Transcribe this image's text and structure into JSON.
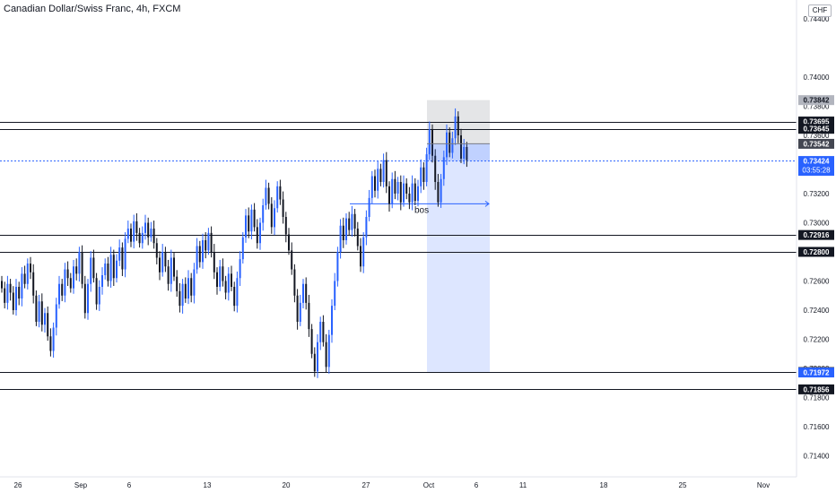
{
  "header": {
    "title": "Canadian Dollar/Swiss Franc, 4h, FXCM",
    "currency": "CHF"
  },
  "chart_data": {
    "type": "candlestick",
    "title": "Canadian Dollar/Swiss Franc, 4h, FXCM",
    "ylim": [
      0.7126,
      0.7455
    ],
    "y_ticks": [
      "0.74400",
      "0.74000",
      "0.73800",
      "0.73600",
      "0.73400",
      "0.73200",
      "0.73000",
      "0.72800",
      "0.72600",
      "0.72400",
      "0.72200",
      "0.72000",
      "0.71800",
      "0.71600",
      "0.71400"
    ],
    "x_ticks": [
      "26",
      "Sep",
      "6",
      "13",
      "20",
      "27",
      "Oct",
      "6",
      "11",
      "18",
      "25",
      "Nov"
    ],
    "horizontal_levels": [
      "0.73695",
      "0.73645",
      "0.72916",
      "0.72800",
      "0.71975",
      "0.71856"
    ],
    "price_labels": [
      {
        "value": "0.73842",
        "style": "gray"
      },
      {
        "value": "0.73695",
        "style": "black"
      },
      {
        "value": "0.73645",
        "style": "black"
      },
      {
        "value": "0.73542",
        "style": "dark"
      },
      {
        "value": "0.73424",
        "style": "blue"
      },
      {
        "value": "0.72916",
        "style": "black"
      },
      {
        "value": "0.72800",
        "style": "black"
      },
      {
        "value": "0.71975",
        "style": "black"
      },
      {
        "value": "0.71972",
        "style": "blue"
      },
      {
        "value": "0.71856",
        "style": "black"
      }
    ],
    "countdown": "03:55:28",
    "current_price": "0.73424",
    "annotation": "bos",
    "bos_level": 0.7313,
    "position": {
      "entry": 0.73542,
      "stop": 0.73842,
      "target": 0.71972,
      "current": 0.73424
    },
    "candles": [
      [
        0.726,
        0.7255
      ],
      [
        0.7255,
        0.7245
      ],
      [
        0.7245,
        0.7258
      ],
      [
        0.7258,
        0.7252
      ],
      [
        0.7252,
        0.724
      ],
      [
        0.724,
        0.7256
      ],
      [
        0.7256,
        0.7248
      ],
      [
        0.7248,
        0.7265
      ],
      [
        0.7265,
        0.7258
      ],
      [
        0.7258,
        0.7272
      ],
      [
        0.7272,
        0.7266
      ],
      [
        0.7266,
        0.725
      ],
      [
        0.725,
        0.7232
      ],
      [
        0.7232,
        0.7246
      ],
      [
        0.7246,
        0.723
      ],
      [
        0.723,
        0.7238
      ],
      [
        0.7238,
        0.7222
      ],
      [
        0.7222,
        0.7212
      ],
      [
        0.7212,
        0.7228
      ],
      [
        0.7228,
        0.7244
      ],
      [
        0.7244,
        0.7258
      ],
      [
        0.7258,
        0.725
      ],
      [
        0.725,
        0.7268
      ],
      [
        0.7268,
        0.7262
      ],
      [
        0.7262,
        0.7255
      ],
      [
        0.7255,
        0.727
      ],
      [
        0.727,
        0.7265
      ],
      [
        0.7265,
        0.728
      ],
      [
        0.728,
        0.7258
      ],
      [
        0.7258,
        0.7238
      ],
      [
        0.7238,
        0.7258
      ],
      [
        0.7258,
        0.7276
      ],
      [
        0.7276,
        0.7262
      ],
      [
        0.7262,
        0.7244
      ],
      [
        0.7244,
        0.7256
      ],
      [
        0.7256,
        0.7264
      ],
      [
        0.7264,
        0.7272
      ],
      [
        0.7272,
        0.726
      ],
      [
        0.726,
        0.7278
      ],
      [
        0.7278,
        0.7262
      ],
      [
        0.7262,
        0.7274
      ],
      [
        0.7274,
        0.7283
      ],
      [
        0.7283,
        0.7268
      ],
      [
        0.7268,
        0.7289
      ],
      [
        0.7289,
        0.7296
      ],
      [
        0.7296,
        0.7287
      ],
      [
        0.7287,
        0.7301
      ],
      [
        0.7301,
        0.7293
      ],
      [
        0.7293,
        0.7286
      ],
      [
        0.7286,
        0.7293
      ],
      [
        0.7293,
        0.73
      ],
      [
        0.73,
        0.729
      ],
      [
        0.729,
        0.7296
      ],
      [
        0.7296,
        0.7286
      ],
      [
        0.7286,
        0.7276
      ],
      [
        0.7276,
        0.7266
      ],
      [
        0.7266,
        0.728
      ],
      [
        0.728,
        0.727
      ],
      [
        0.727,
        0.7258
      ],
      [
        0.7258,
        0.7276
      ],
      [
        0.7276,
        0.7263
      ],
      [
        0.7263,
        0.7253
      ],
      [
        0.7253,
        0.7243
      ],
      [
        0.7243,
        0.7258
      ],
      [
        0.7258,
        0.7248
      ],
      [
        0.7248,
        0.7262
      ],
      [
        0.7262,
        0.725
      ],
      [
        0.725,
        0.7268
      ],
      [
        0.7268,
        0.7284
      ],
      [
        0.7284,
        0.7273
      ],
      [
        0.7273,
        0.7288
      ],
      [
        0.7288,
        0.7281
      ],
      [
        0.7281,
        0.7293
      ],
      [
        0.7293,
        0.728
      ],
      [
        0.728,
        0.7266
      ],
      [
        0.7266,
        0.7256
      ],
      [
        0.7256,
        0.727
      ],
      [
        0.727,
        0.726
      ],
      [
        0.726,
        0.7252
      ],
      [
        0.7252,
        0.7265
      ],
      [
        0.7265,
        0.7256
      ],
      [
        0.7256,
        0.7243
      ],
      [
        0.7243,
        0.7262
      ],
      [
        0.7262,
        0.7275
      ],
      [
        0.7275,
        0.729
      ],
      [
        0.729,
        0.7305
      ],
      [
        0.7305,
        0.7294
      ],
      [
        0.7294,
        0.7309
      ],
      [
        0.7309,
        0.7297
      ],
      [
        0.7297,
        0.7286
      ],
      [
        0.7286,
        0.73
      ],
      [
        0.73,
        0.7312
      ],
      [
        0.7312,
        0.7324
      ],
      [
        0.7324,
        0.7313
      ],
      [
        0.7313,
        0.7297
      ],
      [
        0.7297,
        0.731
      ],
      [
        0.731,
        0.7325
      ],
      [
        0.7325,
        0.7316
      ],
      [
        0.7316,
        0.7304
      ],
      [
        0.7304,
        0.7292
      ],
      [
        0.7292,
        0.7281
      ],
      [
        0.7281,
        0.7268
      ],
      [
        0.7268,
        0.725
      ],
      [
        0.725,
        0.7232
      ],
      [
        0.7232,
        0.7245
      ],
      [
        0.7245,
        0.7258
      ],
      [
        0.7258,
        0.7245
      ],
      [
        0.7245,
        0.7227
      ],
      [
        0.7227,
        0.721
      ],
      [
        0.721,
        0.7198
      ],
      [
        0.7198,
        0.7218
      ],
      [
        0.7218,
        0.7232
      ],
      [
        0.7232,
        0.7218
      ],
      [
        0.7218,
        0.7201
      ],
      [
        0.7201,
        0.7223
      ],
      [
        0.7223,
        0.7243
      ],
      [
        0.7243,
        0.726
      ],
      [
        0.726,
        0.728
      ],
      [
        0.728,
        0.7298
      ],
      [
        0.7298,
        0.7288
      ],
      [
        0.7288,
        0.7303
      ],
      [
        0.7303,
        0.7295
      ],
      [
        0.7295,
        0.7306
      ],
      [
        0.7306,
        0.7296
      ],
      [
        0.7296,
        0.7284
      ],
      [
        0.7284,
        0.727
      ],
      [
        0.727,
        0.729
      ],
      [
        0.729,
        0.7304
      ],
      [
        0.7304,
        0.7317
      ],
      [
        0.7317,
        0.7332
      ],
      [
        0.7332,
        0.7322
      ],
      [
        0.7322,
        0.7337
      ],
      [
        0.7337,
        0.7328
      ],
      [
        0.7328,
        0.7343
      ],
      [
        0.7343,
        0.7325
      ],
      [
        0.7325,
        0.7313
      ],
      [
        0.7313,
        0.733
      ],
      [
        0.733,
        0.732
      ],
      [
        0.732,
        0.7328
      ],
      [
        0.7328,
        0.7314
      ],
      [
        0.7314,
        0.7327
      ],
      [
        0.7327,
        0.732
      ],
      [
        0.732,
        0.7314
      ],
      [
        0.7314,
        0.7327
      ],
      [
        0.7327,
        0.7315
      ],
      [
        0.7315,
        0.7325
      ],
      [
        0.7325,
        0.7338
      ],
      [
        0.7338,
        0.7328
      ],
      [
        0.7328,
        0.7347
      ],
      [
        0.7347,
        0.7364
      ],
      [
        0.7364,
        0.7346
      ],
      [
        0.7346,
        0.7328
      ],
      [
        0.7328,
        0.7314
      ],
      [
        0.7314,
        0.733
      ],
      [
        0.733,
        0.7345
      ],
      [
        0.7345,
        0.7362
      ],
      [
        0.7362,
        0.7348
      ],
      [
        0.7348,
        0.7358
      ],
      [
        0.7358,
        0.7373
      ],
      [
        0.7373,
        0.736
      ],
      [
        0.736,
        0.7344
      ],
      [
        0.7344,
        0.7352
      ],
      [
        0.7352,
        0.7343
      ]
    ]
  }
}
